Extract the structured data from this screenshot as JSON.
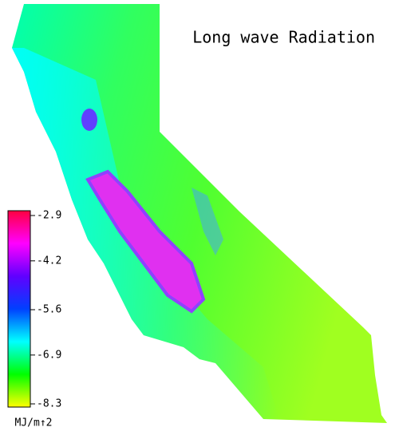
{
  "title": "Long wave Radiation",
  "colorbar": {
    "lim": [
      -8.3,
      -2.9
    ],
    "ticks": [
      -2.9,
      -4.2,
      -5.6,
      -6.9,
      -8.3
    ],
    "colors": [
      "#ff0040",
      "#ff00ff",
      "#6000ff",
      "#0040ff",
      "#00ffff",
      "#00ff00",
      "#ffff00"
    ],
    "unit": "MJ/m↑2"
  }
}
